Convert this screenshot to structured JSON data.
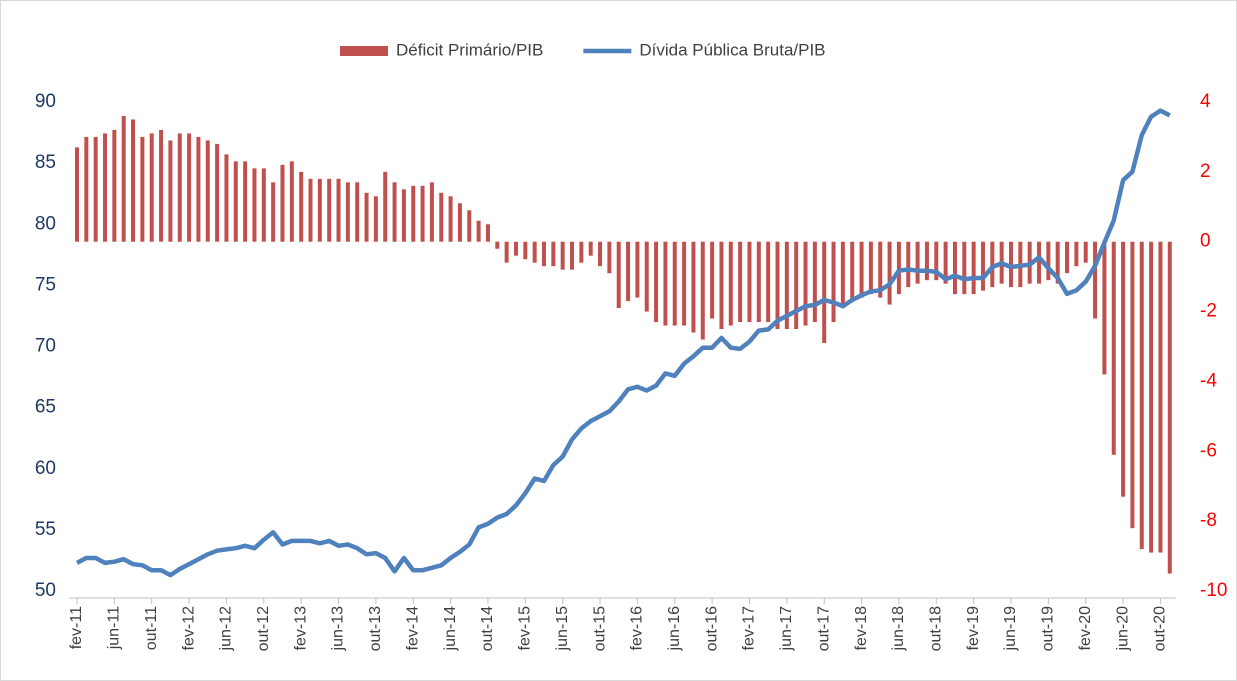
{
  "chart_data": {
    "type": "bar-line",
    "categories": [
      "fev-11",
      null,
      null,
      null,
      "jun-11",
      null,
      null,
      null,
      "out-11",
      null,
      null,
      null,
      "fev-12",
      null,
      null,
      null,
      "jun-12",
      null,
      null,
      null,
      "out-12",
      null,
      null,
      null,
      "fev-13",
      null,
      null,
      null,
      "jun-13",
      null,
      null,
      null,
      "out-13",
      null,
      null,
      null,
      "fev-14",
      null,
      null,
      null,
      "jun-14",
      null,
      null,
      null,
      "out-14",
      null,
      null,
      null,
      "fev-15",
      null,
      null,
      null,
      "jun-15",
      null,
      null,
      null,
      "out-15",
      null,
      null,
      null,
      "fev-16",
      null,
      null,
      null,
      "jun-16",
      null,
      null,
      null,
      "out-16",
      null,
      null,
      null,
      "fev-17",
      null,
      null,
      null,
      "jun-17",
      null,
      null,
      null,
      "out-17",
      null,
      null,
      null,
      "fev-18",
      null,
      null,
      null,
      "jun-18",
      null,
      null,
      null,
      "out-18",
      null,
      null,
      null,
      "fev-19",
      null,
      null,
      null,
      "jun-19",
      null,
      null,
      null,
      "out-19",
      null,
      null,
      null,
      "fev-20",
      null,
      null,
      null,
      "jun-20",
      null,
      null,
      null,
      "out-20",
      null
    ],
    "series": [
      {
        "name": "Déficit Primário/PIB",
        "kind": "bar",
        "axis": "y2",
        "color": "#c0504d",
        "values": [
          2.7,
          3.0,
          3.0,
          3.1,
          3.2,
          3.6,
          3.5,
          3.0,
          3.1,
          3.2,
          2.9,
          3.1,
          3.1,
          3.0,
          2.9,
          2.8,
          2.5,
          2.3,
          2.3,
          2.1,
          2.1,
          1.7,
          2.2,
          2.3,
          2.0,
          1.8,
          1.8,
          1.8,
          1.8,
          1.7,
          1.7,
          1.4,
          1.3,
          2.0,
          1.7,
          1.5,
          1.6,
          1.6,
          1.7,
          1.4,
          1.3,
          1.1,
          0.9,
          0.6,
          0.5,
          -0.2,
          -0.6,
          -0.4,
          -0.5,
          -0.6,
          -0.7,
          -0.7,
          -0.8,
          -0.8,
          -0.6,
          -0.4,
          -0.7,
          -0.9,
          -1.9,
          -1.7,
          -1.6,
          -2.0,
          -2.3,
          -2.4,
          -2.4,
          -2.4,
          -2.6,
          -2.8,
          -2.2,
          -2.5,
          -2.4,
          -2.3,
          -2.3,
          -2.3,
          -2.3,
          -2.5,
          -2.5,
          -2.5,
          -2.4,
          -2.3,
          -2.9,
          -2.3,
          -1.9,
          -1.7,
          -1.6,
          -1.5,
          -1.6,
          -1.8,
          -1.5,
          -1.3,
          -1.2,
          -1.1,
          -1.1,
          -1.2,
          -1.5,
          -1.5,
          -1.5,
          -1.4,
          -1.3,
          -1.2,
          -1.3,
          -1.3,
          -1.2,
          -1.2,
          -1.1,
          -1.2,
          -0.9,
          -0.7,
          -0.6,
          -2.2,
          -3.8,
          -6.1,
          -7.3,
          -8.2,
          -8.8,
          -8.9,
          -8.9,
          -9.5
        ]
      },
      {
        "name": "Dívida Pública Bruta/PIB",
        "kind": "line",
        "axis": "y",
        "color": "#4f81bd",
        "values": [
          52.3,
          52.7,
          52.7,
          52.3,
          52.4,
          52.6,
          52.2,
          52.1,
          51.7,
          51.7,
          51.3,
          51.8,
          52.2,
          52.6,
          53.0,
          53.3,
          53.4,
          53.5,
          53.7,
          53.5,
          54.2,
          54.8,
          53.8,
          54.1,
          54.1,
          54.1,
          53.9,
          54.1,
          53.7,
          53.8,
          53.5,
          53.0,
          53.1,
          52.7,
          51.6,
          52.7,
          51.7,
          51.7,
          51.9,
          52.1,
          52.7,
          53.2,
          53.8,
          55.2,
          55.5,
          56.0,
          56.3,
          57.0,
          58.0,
          59.2,
          59.0,
          60.3,
          61.0,
          62.4,
          63.3,
          63.9,
          64.3,
          64.7,
          65.5,
          66.5,
          66.7,
          66.4,
          66.8,
          67.8,
          67.6,
          68.6,
          69.2,
          69.9,
          69.9,
          70.7,
          69.9,
          69.8,
          70.4,
          71.3,
          71.4,
          72.1,
          72.5,
          72.9,
          73.3,
          73.4,
          73.8,
          73.6,
          73.3,
          73.8,
          74.2,
          74.5,
          74.6,
          75.1,
          76.2,
          76.3,
          76.2,
          76.2,
          76.1,
          75.5,
          75.8,
          75.5,
          75.6,
          75.6,
          76.5,
          76.8,
          76.5,
          76.6,
          76.7,
          77.3,
          76.4,
          75.6,
          74.3,
          74.6,
          75.3,
          76.6,
          78.5,
          80.3,
          83.6,
          84.3,
          87.3,
          88.8,
          89.3,
          88.9
        ]
      }
    ],
    "ylim": [
      50,
      90
    ],
    "yticks": [
      50,
      55,
      60,
      65,
      70,
      75,
      80,
      85,
      90
    ],
    "y2lim": [
      -10,
      4
    ],
    "y2ticks": [
      -10,
      -8,
      -6,
      -4,
      -2,
      0,
      2,
      4
    ],
    "legend": "top"
  }
}
